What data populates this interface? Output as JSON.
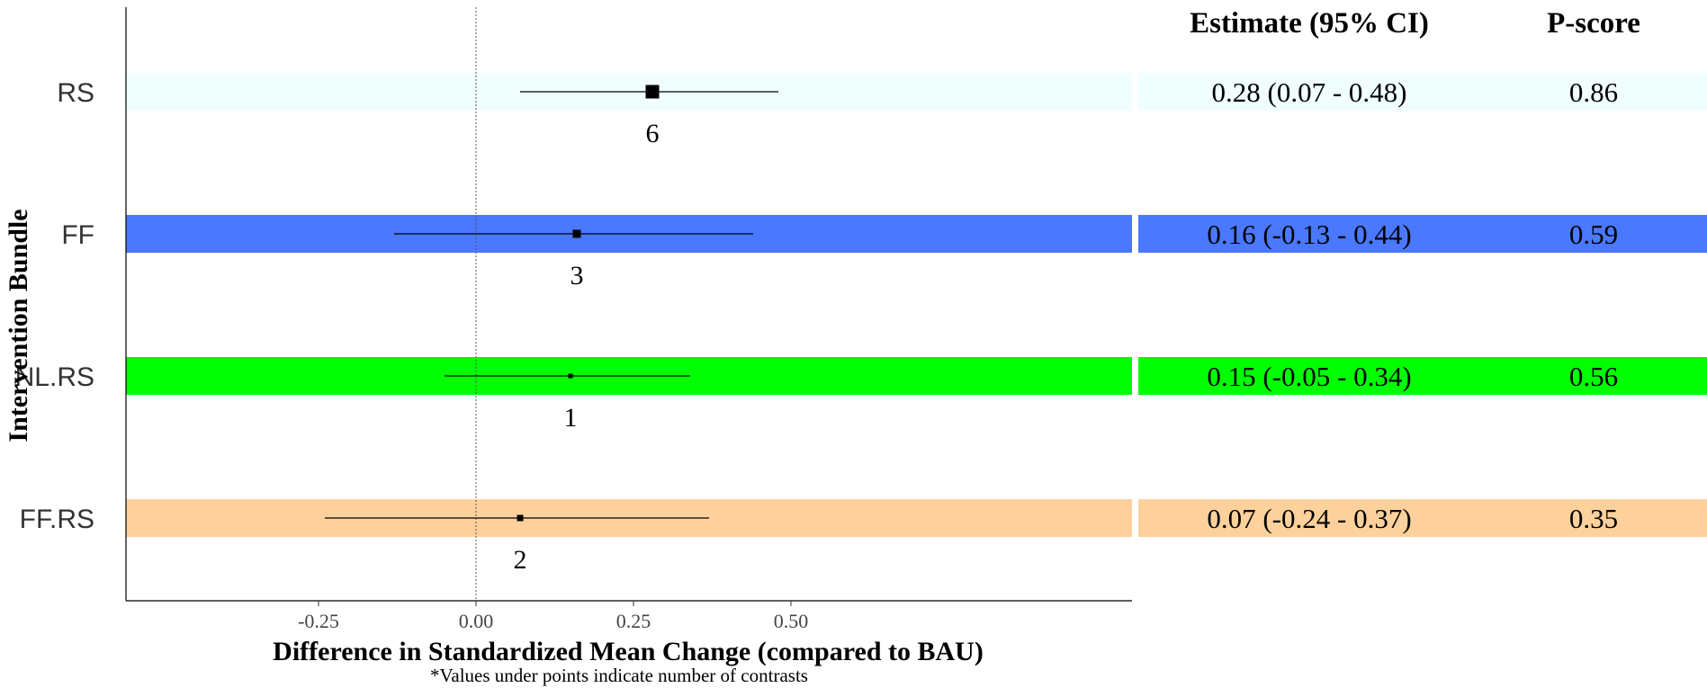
{
  "chart_data": {
    "type": "forest",
    "xlabel": "Difference in Standardized Mean Change (compared to BAU)",
    "ylabel": "Intervention Bundle",
    "footnote": "*Values under points indicate number of contrasts",
    "xlim": [
      -0.28,
      0.52
    ],
    "xticks": [
      {
        "value": -0.25,
        "label": "-0.25"
      },
      {
        "value": 0.0,
        "label": "0.00"
      },
      {
        "value": 0.25,
        "label": "0.25"
      },
      {
        "value": 0.5,
        "label": "0.50"
      }
    ],
    "reference_line": 0.0,
    "table_headers": {
      "estimate": "Estimate (95% CI)",
      "pscore": "P-score"
    },
    "rows": [
      {
        "label": "RS",
        "estimate": 0.28,
        "ci_low": 0.07,
        "ci_high": 0.48,
        "n_contrasts": 6,
        "n_label": "6",
        "estimate_text": "0.28 (0.07 - 0.48)",
        "pscore_text": "0.86",
        "color": "#f0fefe"
      },
      {
        "label": "FF",
        "estimate": 0.16,
        "ci_low": -0.13,
        "ci_high": 0.44,
        "n_contrasts": 3,
        "n_label": "3",
        "estimate_text": "0.16 (-0.13 - 0.44)",
        "pscore_text": "0.59",
        "color": "#4a78ff"
      },
      {
        "label": "NL.RS",
        "estimate": 0.15,
        "ci_low": -0.05,
        "ci_high": 0.34,
        "n_contrasts": 1,
        "n_label": "1",
        "estimate_text": "0.15 (-0.05 - 0.34)",
        "pscore_text": "0.56",
        "color": "#00ff00"
      },
      {
        "label": "FF.RS",
        "estimate": 0.07,
        "ci_low": -0.24,
        "ci_high": 0.37,
        "n_contrasts": 2,
        "n_label": "2",
        "estimate_text": "0.07 (-0.24 - 0.37)",
        "pscore_text": "0.35",
        "color": "#fed19c"
      }
    ]
  }
}
